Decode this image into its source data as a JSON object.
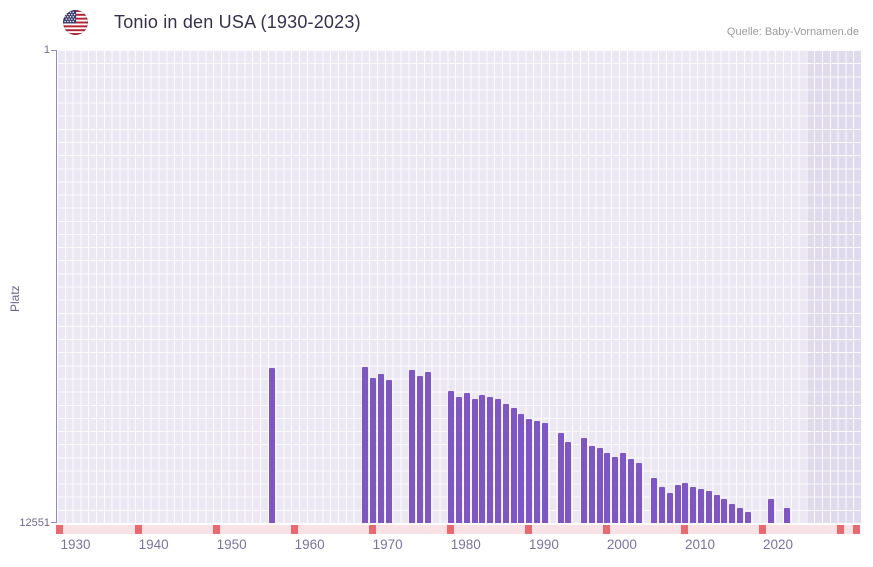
{
  "header": {
    "title": "Tonio in den USA (1930-2023)",
    "source": "Quelle: Baby-Vornamen.de",
    "flag": "us-flag-icon"
  },
  "chart_data": {
    "type": "bar",
    "title": "Tonio in den USA (1930-2023)",
    "xlabel": "",
    "ylabel": "Platz",
    "y_axis": {
      "top_tick": "1",
      "bottom_tick": "12551",
      "min": 1,
      "max": 12551,
      "inverted": true
    },
    "x_axis": {
      "start": 1928,
      "end": 2031,
      "ticks": [
        1930,
        1940,
        1950,
        1960,
        1970,
        1980,
        1990,
        2000,
        2010,
        2020
      ]
    },
    "future_band_start_year": 2024,
    "timeline": {
      "mark_every_years": 10
    },
    "colors": {
      "bar": "#7e57c2",
      "plot_bg": "#ebe8f4",
      "plot_bg_future": "#dfdaec",
      "grid_line": "#ffffff",
      "axis_line": "#9586c7",
      "timeline_bg": "#f9e2e5",
      "timeline_mark": "#e66a6f"
    },
    "points": [
      {
        "year": 1955,
        "rank": 8450
      },
      {
        "year": 1967,
        "rank": 8400
      },
      {
        "year": 1968,
        "rank": 8700
      },
      {
        "year": 1969,
        "rank": 8600
      },
      {
        "year": 1970,
        "rank": 8750
      },
      {
        "year": 1973,
        "rank": 8500
      },
      {
        "year": 1974,
        "rank": 8650
      },
      {
        "year": 1975,
        "rank": 8550
      },
      {
        "year": 1978,
        "rank": 9050
      },
      {
        "year": 1979,
        "rank": 9200
      },
      {
        "year": 1980,
        "rank": 9100
      },
      {
        "year": 1981,
        "rank": 9250
      },
      {
        "year": 1982,
        "rank": 9150
      },
      {
        "year": 1983,
        "rank": 9200
      },
      {
        "year": 1984,
        "rank": 9250
      },
      {
        "year": 1985,
        "rank": 9400
      },
      {
        "year": 1986,
        "rank": 9500
      },
      {
        "year": 1987,
        "rank": 9650
      },
      {
        "year": 1988,
        "rank": 9800
      },
      {
        "year": 1989,
        "rank": 9850
      },
      {
        "year": 1990,
        "rank": 9900
      },
      {
        "year": 1992,
        "rank": 10150
      },
      {
        "year": 1993,
        "rank": 10400
      },
      {
        "year": 1995,
        "rank": 10300
      },
      {
        "year": 1996,
        "rank": 10500
      },
      {
        "year": 1997,
        "rank": 10550
      },
      {
        "year": 1998,
        "rank": 10700
      },
      {
        "year": 1999,
        "rank": 10800
      },
      {
        "year": 2000,
        "rank": 10700
      },
      {
        "year": 2001,
        "rank": 10850
      },
      {
        "year": 2002,
        "rank": 10950
      },
      {
        "year": 2004,
        "rank": 11350
      },
      {
        "year": 2005,
        "rank": 11600
      },
      {
        "year": 2006,
        "rank": 11750
      },
      {
        "year": 2007,
        "rank": 11550
      },
      {
        "year": 2008,
        "rank": 11500
      },
      {
        "year": 2009,
        "rank": 11600
      },
      {
        "year": 2010,
        "rank": 11650
      },
      {
        "year": 2011,
        "rank": 11700
      },
      {
        "year": 2012,
        "rank": 11800
      },
      {
        "year": 2013,
        "rank": 11900
      },
      {
        "year": 2014,
        "rank": 12050
      },
      {
        "year": 2015,
        "rank": 12150
      },
      {
        "year": 2016,
        "rank": 12250
      },
      {
        "year": 2019,
        "rank": 11900
      },
      {
        "year": 2021,
        "rank": 12150
      }
    ]
  }
}
